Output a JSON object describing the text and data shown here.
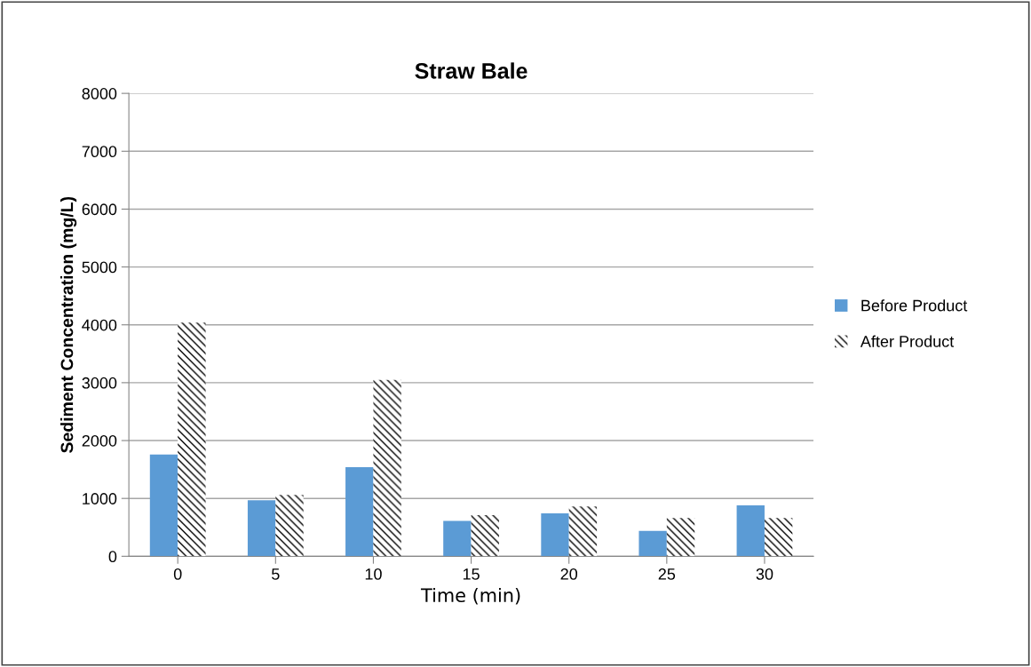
{
  "chart_data": {
    "type": "bar",
    "title": "Straw Bale",
    "xlabel": "Time (min)",
    "ylabel": "Sediment Concentration (mg/L)",
    "categories": [
      "0",
      "5",
      "10",
      "15",
      "20",
      "25",
      "30"
    ],
    "series": [
      {
        "name": "Before Product",
        "color": "#5b9bd5",
        "values": [
          1760,
          970,
          1540,
          610,
          740,
          440,
          880
        ]
      },
      {
        "name": "After Product",
        "color": "#000000",
        "values": [
          4040,
          1060,
          3050,
          710,
          860,
          660,
          660
        ]
      }
    ],
    "ylim": [
      0,
      8000
    ],
    "yticks": [
      0,
      1000,
      2000,
      3000,
      4000,
      5000,
      6000,
      7000,
      8000
    ],
    "grid": "y",
    "legend": "right"
  }
}
